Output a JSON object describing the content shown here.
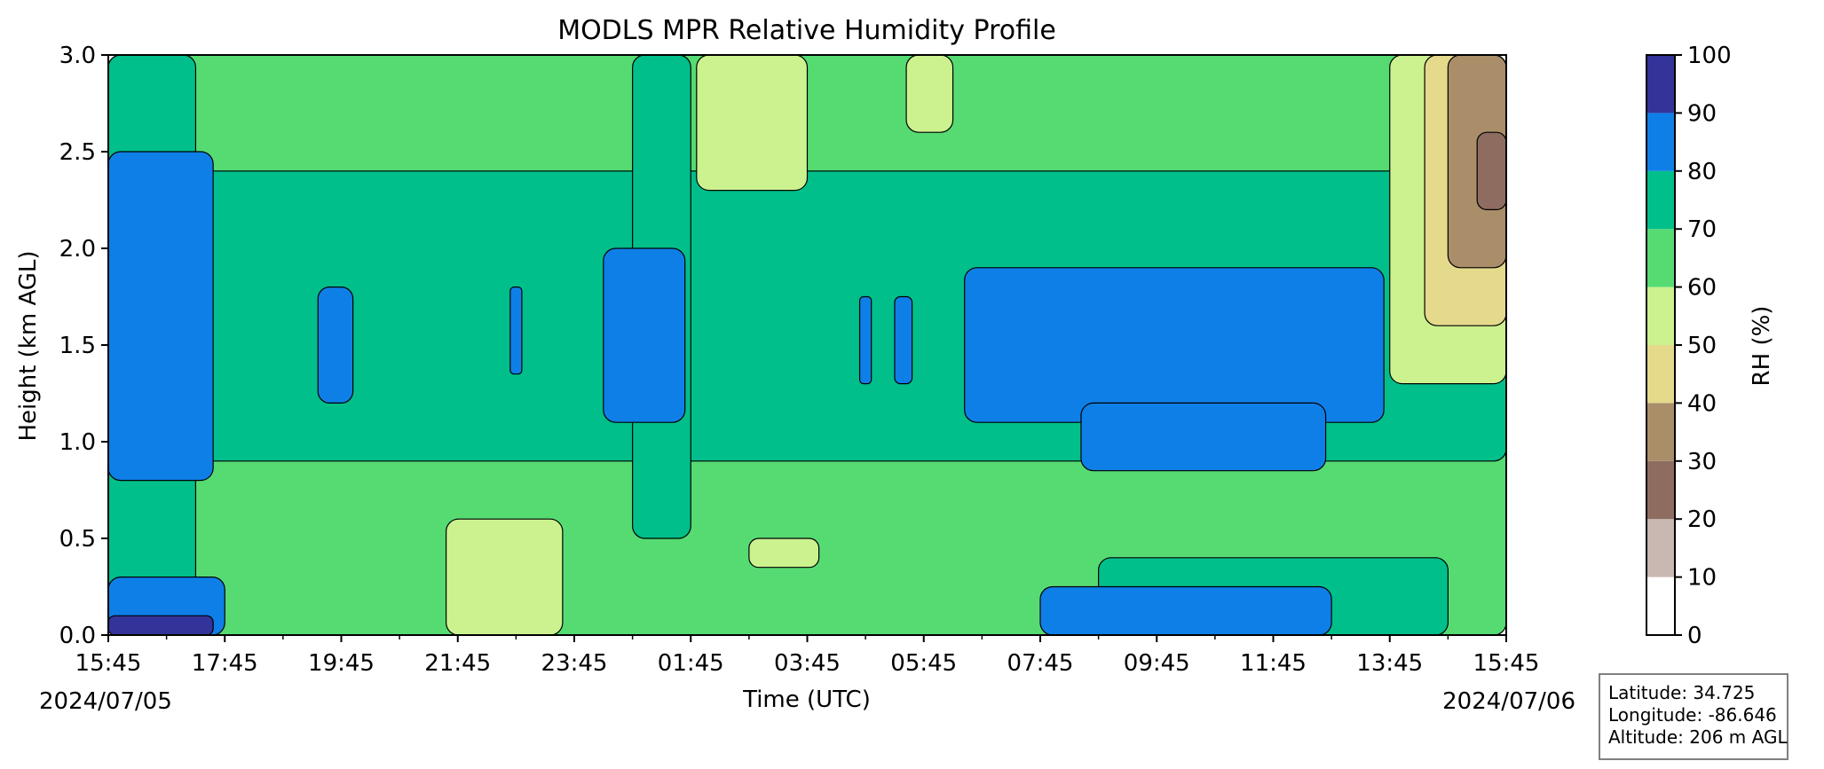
{
  "chart_data": {
    "type": "heatmap",
    "subtype": "filled-contour",
    "title": "MODLS MPR Relative Humidity Profile",
    "xlabel": "Time (UTC)",
    "ylabel": "Height (km AGL)",
    "x_ticks": [
      "15:45",
      "17:45",
      "19:45",
      "21:45",
      "23:45",
      "01:45",
      "03:45",
      "05:45",
      "07:45",
      "09:45",
      "11:45",
      "13:45",
      "15:45"
    ],
    "x_hours_from_start": [
      0,
      2,
      4,
      6,
      8,
      10,
      12,
      14,
      16,
      18,
      20,
      22,
      24
    ],
    "x_start_date": "2024/07/05",
    "x_end_date": "2024/07/06",
    "y_ticks": [
      "0.0",
      "0.5",
      "1.0",
      "1.5",
      "2.0",
      "2.5",
      "3.0"
    ],
    "y_tick_values": [
      0.0,
      0.5,
      1.0,
      1.5,
      2.0,
      2.5,
      3.0
    ],
    "ylim": [
      0.0,
      3.0
    ],
    "colorbar": {
      "label": "RH (%)",
      "levels": [
        0,
        10,
        20,
        30,
        40,
        50,
        60,
        70,
        80,
        90,
        100
      ],
      "tick_labels": [
        "0",
        "10",
        "20",
        "30",
        "40",
        "50",
        "60",
        "70",
        "80",
        "90",
        "100"
      ],
      "colors": [
        "#ffffff",
        "#c9b7b1",
        "#8e6d60",
        "#a98e69",
        "#e5d98c",
        "#cbf28f",
        "#56db73",
        "#00bf8a",
        "#0f7fe8",
        "#333399"
      ]
    },
    "grid": false,
    "regions": [
      {
        "rh_bin": "60-70",
        "t": [
          0.0,
          24.0
        ],
        "h": [
          0.0,
          3.0
        ]
      },
      {
        "rh_bin": "70-80",
        "t": [
          0.0,
          24.0
        ],
        "h": [
          0.9,
          2.4
        ]
      },
      {
        "rh_bin": "70-80",
        "t": [
          0.0,
          1.5
        ],
        "h": [
          0.0,
          3.0
        ]
      },
      {
        "rh_bin": "70-80",
        "t": [
          9.0,
          10.0
        ],
        "h": [
          0.5,
          3.0
        ]
      },
      {
        "rh_bin": "70-80",
        "t": [
          17.0,
          23.0
        ],
        "h": [
          0.0,
          0.4
        ]
      },
      {
        "rh_bin": "80-90",
        "t": [
          0.0,
          1.8
        ],
        "h": [
          0.8,
          2.5
        ]
      },
      {
        "rh_bin": "80-90",
        "t": [
          8.5,
          9.9
        ],
        "h": [
          1.1,
          2.0
        ]
      },
      {
        "rh_bin": "80-90",
        "t": [
          14.7,
          21.9
        ],
        "h": [
          1.1,
          1.9
        ]
      },
      {
        "rh_bin": "80-90",
        "t": [
          16.7,
          20.9
        ],
        "h": [
          0.85,
          1.2
        ]
      },
      {
        "rh_bin": "80-90",
        "t": [
          3.6,
          4.2
        ],
        "h": [
          1.2,
          1.8
        ]
      },
      {
        "rh_bin": "80-90",
        "t": [
          6.9,
          7.1
        ],
        "h": [
          1.35,
          1.8
        ]
      },
      {
        "rh_bin": "80-90",
        "t": [
          12.9,
          13.1
        ],
        "h": [
          1.3,
          1.75
        ]
      },
      {
        "rh_bin": "80-90",
        "t": [
          13.5,
          13.8
        ],
        "h": [
          1.3,
          1.75
        ]
      },
      {
        "rh_bin": "80-90",
        "t": [
          0.0,
          2.0
        ],
        "h": [
          0.0,
          0.3
        ]
      },
      {
        "rh_bin": "80-90",
        "t": [
          16.0,
          21.0
        ],
        "h": [
          0.0,
          0.25
        ]
      },
      {
        "rh_bin": "90-100",
        "t": [
          0.0,
          1.8
        ],
        "h": [
          0.0,
          0.1
        ]
      },
      {
        "rh_bin": "50-60",
        "t": [
          5.8,
          7.8
        ],
        "h": [
          0.0,
          0.6
        ]
      },
      {
        "rh_bin": "50-60",
        "t": [
          10.1,
          12.0
        ],
        "h": [
          2.3,
          3.0
        ]
      },
      {
        "rh_bin": "50-60",
        "t": [
          11.0,
          12.2
        ],
        "h": [
          0.35,
          0.5
        ]
      },
      {
        "rh_bin": "50-60",
        "t": [
          13.7,
          14.5
        ],
        "h": [
          2.6,
          3.0
        ]
      },
      {
        "rh_bin": "50-60",
        "t": [
          22.0,
          24.0
        ],
        "h": [
          1.3,
          3.0
        ]
      },
      {
        "rh_bin": "40-50",
        "t": [
          22.6,
          24.0
        ],
        "h": [
          1.6,
          3.0
        ]
      },
      {
        "rh_bin": "30-40",
        "t": [
          23.0,
          24.0
        ],
        "h": [
          1.9,
          3.0
        ]
      },
      {
        "rh_bin": "20-30",
        "t": [
          23.5,
          24.0
        ],
        "h": [
          2.2,
          2.6
        ]
      }
    ]
  },
  "info_box": {
    "latitude": "Latitude: 34.725",
    "longitude": "Longitude: -86.646",
    "altitude": "Altitude: 206 m AGL"
  }
}
